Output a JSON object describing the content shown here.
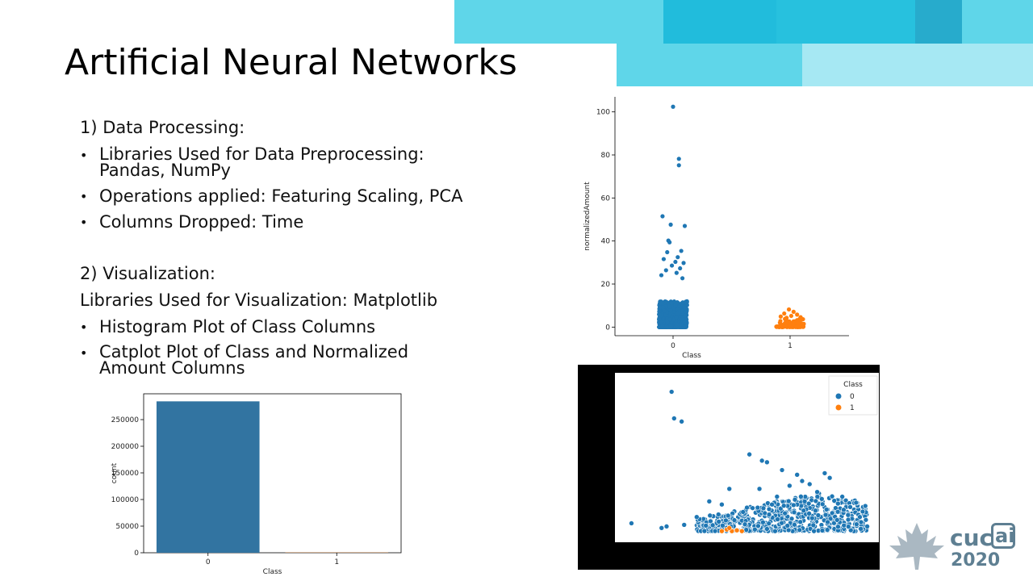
{
  "slide": {
    "title": "Artificial Neural Networks",
    "section1_heading": "1) Data Processing:",
    "bullets1": [
      "Libraries Used for Data Preprocessing: Pandas, NumPy",
      "Operations applied: Featuring Scaling, PCA",
      "Columns Dropped: Time"
    ],
    "section2_heading": "2) Visualization:",
    "section2_line": "Libraries Used for Visualization: Matplotlib",
    "bullets2": [
      "Histogram Plot of Class Columns",
      "Catplot Plot of Class and Normalized Amount Columns"
    ]
  },
  "logo": {
    "left_text": "cuc",
    "boxed_text": "ai",
    "year": "2020",
    "color": "#5e7f92"
  },
  "colors": {
    "class0": "#1f77b4",
    "class1": "#ff7f0e",
    "bar0": "#3274a1",
    "bar1": "#e1812c",
    "banner": [
      "#5fd6e9",
      "#21bcdc",
      "#27abcc",
      "#a6e8f3"
    ]
  },
  "chart_data": [
    {
      "id": "countplot",
      "type": "bar",
      "categories": [
        "0",
        "1"
      ],
      "values": [
        284315,
        492
      ],
      "xlabel": "Class",
      "ylabel": "count",
      "ylim": [
        0,
        298500
      ],
      "yticks": [
        0,
        50000,
        100000,
        150000,
        200000,
        250000
      ],
      "colors": [
        "#3274a1",
        "#e1812c"
      ]
    },
    {
      "id": "catplot",
      "type": "scatter",
      "categories": [
        "0",
        "1"
      ],
      "xlabel": "Class",
      "ylabel": "normalizedAmount",
      "ylim": [
        -4,
        107
      ],
      "yticks": [
        0,
        20,
        40,
        60,
        80,
        100
      ],
      "series": [
        {
          "name": "0",
          "dense_range": [
            0,
            12
          ],
          "points": [
            [
              0,
              102.4
            ],
            [
              0.05,
              78.2
            ],
            [
              0.05,
              75.2
            ],
            [
              -0.09,
              51.5
            ],
            [
              0.1,
              47.0
            ],
            [
              -0.02,
              47.6
            ],
            [
              -0.04,
              40.2
            ],
            [
              -0.03,
              39.4
            ],
            [
              0.07,
              35.4
            ],
            [
              -0.05,
              34.8
            ],
            [
              0.04,
              32.5
            ],
            [
              -0.08,
              31.6
            ],
            [
              0.02,
              30.3
            ],
            [
              0.09,
              29.8
            ],
            [
              -0.01,
              28.6
            ],
            [
              0.06,
              27.3
            ],
            [
              -0.06,
              26.4
            ],
            [
              0.03,
              25.2
            ],
            [
              -0.1,
              24.1
            ],
            [
              0.08,
              22.7
            ]
          ]
        },
        {
          "name": "1",
          "dense_range": [
            0,
            4
          ],
          "points": [
            [
              -0.01,
              8.2
            ],
            [
              0.03,
              7.1
            ],
            [
              -0.05,
              6.3
            ],
            [
              0.06,
              5.8
            ],
            [
              0.01,
              5.2
            ],
            [
              -0.08,
              4.9
            ],
            [
              0.09,
              4.6
            ],
            [
              -0.03,
              4.3
            ]
          ]
        }
      ]
    },
    {
      "id": "pca_scatter",
      "type": "scatter",
      "legend_title": "Class",
      "legend_placement": "top-right",
      "series": [
        {
          "name": "0",
          "points": [
            [
              0.04,
              0.08
            ],
            [
              0.2,
              0.92
            ],
            [
              0.21,
              0.75
            ],
            [
              0.24,
              0.73
            ],
            [
              0.51,
              0.52
            ],
            [
              0.56,
              0.48
            ],
            [
              0.58,
              0.47
            ],
            [
              0.7,
              0.39
            ],
            [
              0.67,
              0.32
            ],
            [
              0.43,
              0.3
            ],
            [
              0.35,
              0.22
            ],
            [
              0.81,
              0.4
            ],
            [
              0.83,
              0.37
            ],
            [
              0.72,
              0.35
            ],
            [
              0.75,
              0.33
            ],
            [
              0.6,
              0.2
            ],
            [
              0.5,
              0.18
            ],
            [
              0.45,
              0.1
            ],
            [
              0.3,
              0.12
            ],
            [
              0.25,
              0.07
            ],
            [
              0.18,
              0.06
            ],
            [
              0.16,
              0.05
            ],
            [
              0.62,
              0.25
            ],
            [
              0.78,
              0.28
            ],
            [
              0.88,
              0.25
            ],
            [
              0.95,
              0.12
            ],
            [
              0.4,
              0.2
            ],
            [
              0.55,
              0.3
            ],
            [
              0.64,
              0.42
            ],
            [
              0.73,
              0.22
            ]
          ],
          "dense_region": [
            [
              0.3,
              0.03
            ],
            [
              0.98,
              0.28
            ]
          ]
        },
        {
          "name": "1",
          "points": [
            [
              0.4,
              0.03
            ],
            [
              0.42,
              0.04
            ],
            [
              0.44,
              0.03
            ],
            [
              0.46,
              0.035
            ],
            [
              0.48,
              0.03
            ],
            [
              0.43,
              0.05
            ]
          ]
        }
      ]
    }
  ]
}
